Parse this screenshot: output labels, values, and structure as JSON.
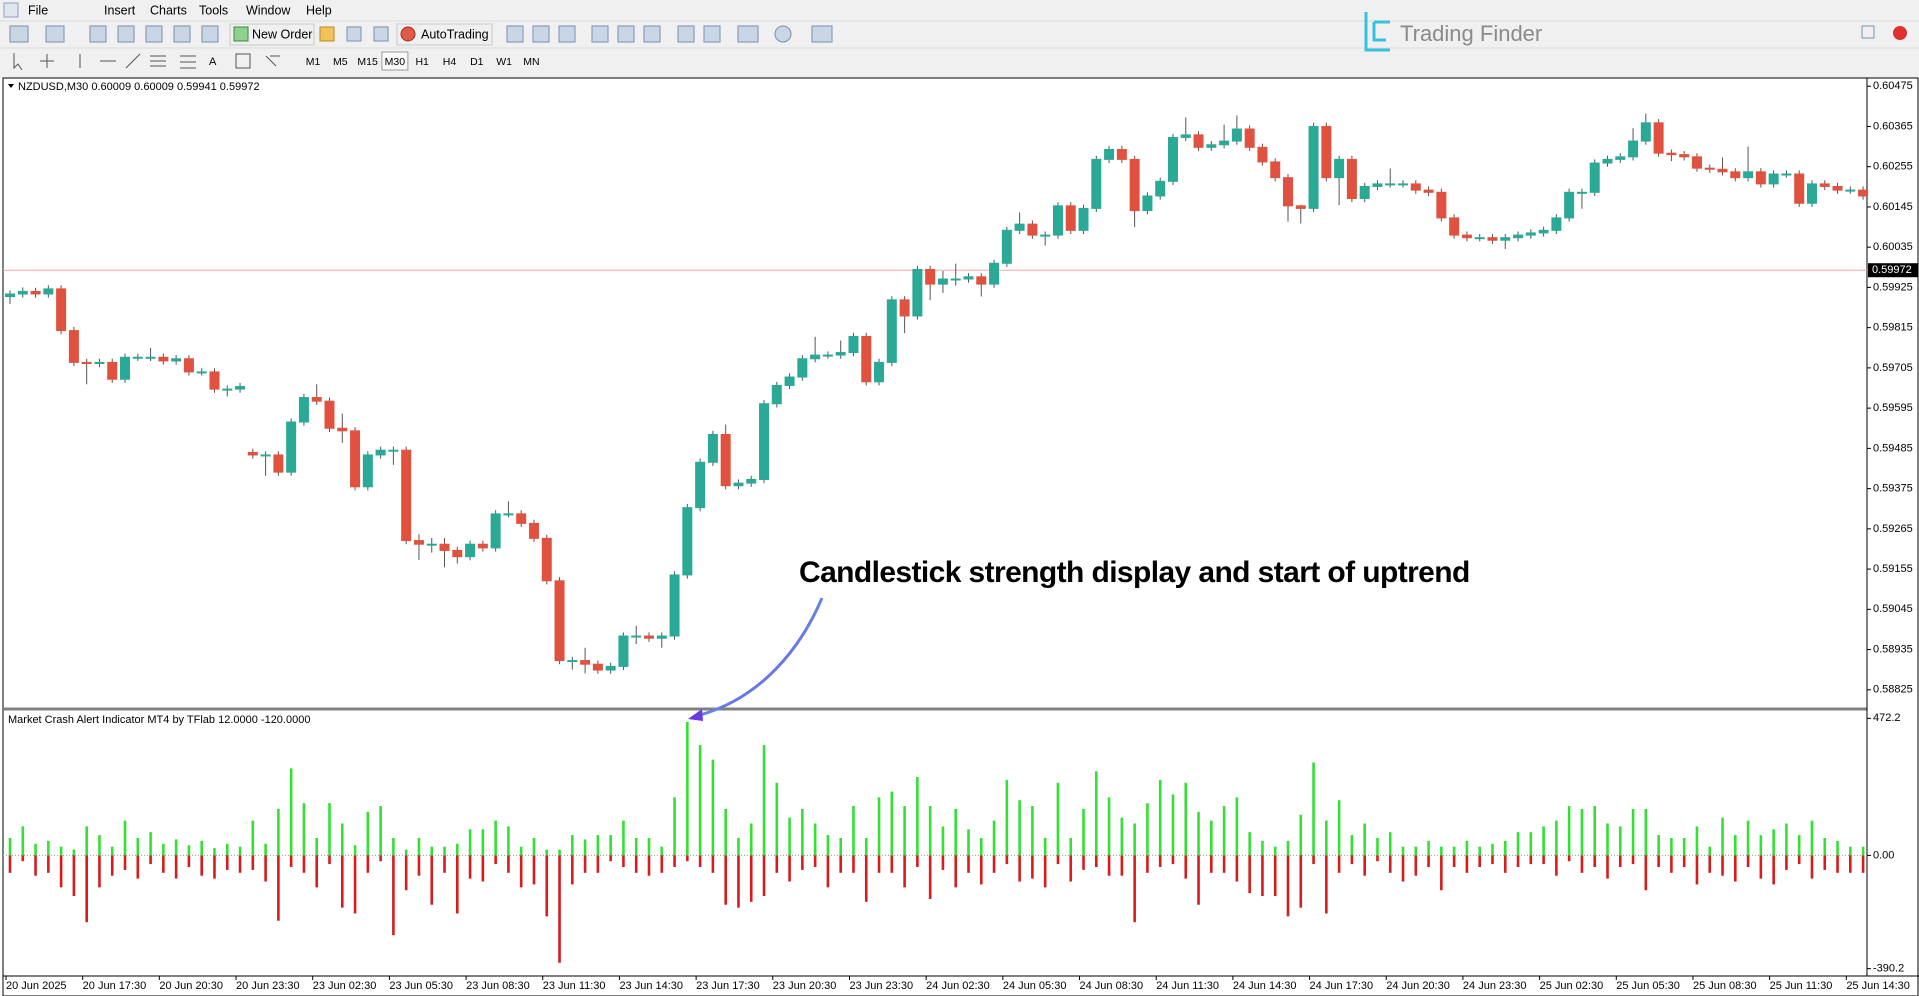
{
  "menu": [
    "File",
    "Insert",
    "Charts",
    "Tools",
    "Window",
    "Help"
  ],
  "toolbar": {
    "new_order": "New Order",
    "auto_trading": "AutoTrading",
    "timeframes": [
      "M1",
      "M5",
      "M15",
      "M30",
      "H1",
      "H4",
      "D1",
      "W1",
      "MN"
    ],
    "active_timeframe": "M30"
  },
  "brand": "Trading Finder",
  "annotation": "Candlestick strength display and start of uptrend",
  "chart_data": [
    {
      "type": "candlestick",
      "title": "NZDUSD,M30 0.60009 0.60009 0.59941 0.59972",
      "categories": [
        "20 Jun 2025",
        null,
        null,
        null,
        null,
        null,
        "20 Jun 17:30",
        null,
        null,
        null,
        null,
        null,
        "20 Jun 20:30",
        null,
        null,
        null,
        null,
        null,
        "20 Jun 23:30",
        null,
        null,
        null,
        null,
        null,
        "23 Jun 02:30",
        null,
        null,
        null,
        null,
        null,
        "23 Jun 05:30",
        null,
        null,
        null,
        null,
        null,
        "23 Jun 08:30",
        null,
        null,
        null,
        null,
        null,
        "23 Jun 11:30",
        null,
        null,
        null,
        null,
        null,
        "23 Jun 14:30",
        null,
        null,
        null,
        null,
        null,
        "23 Jun 17:30",
        null,
        null,
        null,
        null,
        null,
        "23 Jun 20:30",
        null,
        null,
        null,
        null,
        null,
        "23 Jun 23:30",
        null,
        null,
        null,
        null,
        null,
        "24 Jun 02:30",
        null,
        null,
        null,
        null,
        null,
        "24 Jun 05:30",
        null,
        null,
        null,
        null,
        null,
        "24 Jun 08:30",
        null,
        null,
        null,
        null,
        null,
        "24 Jun 11:30",
        null,
        null,
        null,
        null,
        null,
        "24 Jun 14:30",
        null,
        null,
        null,
        null,
        null,
        "24 Jun 17:30",
        null,
        null,
        null,
        null,
        null,
        "24 Jun 20:30",
        null,
        null,
        null,
        null,
        null,
        "24 Jun 23:30",
        null,
        null,
        null,
        null,
        null,
        "25 Jun 02:30",
        null,
        null,
        null,
        null,
        null,
        "25 Jun 05:30",
        null,
        null,
        null,
        null,
        null,
        "25 Jun 08:30",
        null,
        null,
        null,
        null,
        null,
        "25 Jun 11:30",
        null,
        null,
        null,
        null,
        null,
        "25 Jun 14:30",
        null
      ],
      "open": [
        0.599,
        0.59907,
        0.59914,
        0.59907,
        0.59921,
        0.59807,
        0.5972,
        0.59717,
        0.5972,
        0.59674,
        0.59734,
        0.59734,
        0.59734,
        0.59724,
        0.5973,
        0.59694,
        0.59694,
        0.59647,
        0.59647,
        0.59474,
        0.59467,
        0.59467,
        0.5942,
        0.59557,
        0.59624,
        0.59614,
        0.5954,
        0.59533,
        0.5938,
        0.59467,
        0.5948,
        0.5948,
        0.59233,
        0.59223,
        0.59223,
        0.59206,
        0.59189,
        0.59223,
        0.59213,
        0.59306,
        0.59306,
        0.5928,
        0.59239,
        0.59123,
        0.58905,
        0.58905,
        0.58895,
        0.58879,
        0.58889,
        0.58972,
        0.58972,
        0.58966,
        0.58972,
        0.59139,
        0.59323,
        0.59447,
        0.59523,
        0.59383,
        0.5939,
        0.594,
        0.59607,
        0.59657,
        0.5968,
        0.5973,
        0.5974,
        0.5974,
        0.59747,
        0.59791,
        0.59667,
        0.5972,
        0.59891,
        0.59847,
        0.59974,
        0.59934,
        0.59948,
        0.59948,
        0.59954,
        0.59934,
        0.59991,
        0.60081,
        0.60098,
        0.60068,
        0.60068,
        0.60148,
        0.60081,
        0.60141,
        0.60275,
        0.60302,
        0.60275,
        0.60135,
        0.60175,
        0.60215,
        0.60335,
        0.60342,
        0.60308,
        0.60315,
        0.60325,
        0.60358,
        0.60308,
        0.60268,
        0.60225,
        0.60148,
        0.60141,
        0.60365,
        0.60225,
        0.60275,
        0.60168,
        0.60201,
        0.60208,
        0.60208,
        0.60208,
        0.60191,
        0.60185,
        0.60115,
        0.60068,
        0.60061,
        0.60061,
        0.60054,
        0.60061,
        0.60068,
        0.60074,
        0.60081,
        0.60115,
        0.60185,
        0.60185,
        0.60265,
        0.60275,
        0.60282,
        0.60325,
        0.60375,
        0.60292,
        0.60288,
        0.60282,
        0.60251,
        0.60248,
        0.60241,
        0.60225,
        0.60241,
        0.60208,
        0.60235,
        0.60235,
        0.60155,
        0.60208,
        0.60201,
        0.60191,
        0.60191
      ],
      "high": [
        0.59917,
        0.59925,
        0.59924,
        0.59931,
        0.59931,
        0.59817,
        0.5973,
        0.5973,
        0.5973,
        0.59744,
        0.59744,
        0.5976,
        0.59744,
        0.5974,
        0.5974,
        0.59704,
        0.59704,
        0.59657,
        0.59664,
        0.59484,
        0.59477,
        0.59477,
        0.59567,
        0.59634,
        0.5966,
        0.59624,
        0.5958,
        0.59543,
        0.59477,
        0.5949,
        0.5949,
        0.5949,
        0.5925,
        0.5924,
        0.5924,
        0.59216,
        0.59233,
        0.59233,
        0.59316,
        0.5934,
        0.59316,
        0.5929,
        0.59249,
        0.59133,
        0.58915,
        0.5894,
        0.58905,
        0.58899,
        0.58982,
        0.59,
        0.58982,
        0.58982,
        0.59149,
        0.59333,
        0.59457,
        0.59533,
        0.5955,
        0.594,
        0.5941,
        0.59617,
        0.59667,
        0.5969,
        0.5974,
        0.5979,
        0.5975,
        0.5978,
        0.59801,
        0.59801,
        0.5973,
        0.59901,
        0.59901,
        0.59984,
        0.59984,
        0.5997,
        0.5999,
        0.59964,
        0.59964,
        0.60001,
        0.60091,
        0.6013,
        0.60108,
        0.60078,
        0.60158,
        0.60158,
        0.60151,
        0.60285,
        0.60312,
        0.60312,
        0.60285,
        0.60185,
        0.60225,
        0.60345,
        0.6039,
        0.60352,
        0.60325,
        0.6037,
        0.60395,
        0.60368,
        0.60318,
        0.60278,
        0.60235,
        0.60151,
        0.60375,
        0.60375,
        0.60285,
        0.60285,
        0.60211,
        0.60218,
        0.6025,
        0.60218,
        0.60218,
        0.60201,
        0.60195,
        0.60125,
        0.60078,
        0.60071,
        0.60071,
        0.60071,
        0.60078,
        0.60084,
        0.60091,
        0.60125,
        0.60195,
        0.60195,
        0.60275,
        0.60285,
        0.60292,
        0.6036,
        0.604,
        0.60385,
        0.60302,
        0.60298,
        0.60292,
        0.60261,
        0.6028,
        0.60251,
        0.6031,
        0.60251,
        0.60245,
        0.60245,
        0.60245,
        0.60218,
        0.60218,
        0.60211,
        0.60201,
        0.60201
      ],
      "low": [
        0.5988,
        0.59897,
        0.59897,
        0.59897,
        0.59797,
        0.5971,
        0.5966,
        0.59707,
        0.59664,
        0.59664,
        0.59724,
        0.59724,
        0.59714,
        0.59714,
        0.59684,
        0.59684,
        0.59637,
        0.59627,
        0.59637,
        0.59457,
        0.5941,
        0.5941,
        0.5941,
        0.59547,
        0.59604,
        0.5953,
        0.595,
        0.5937,
        0.5937,
        0.59457,
        0.5944,
        0.59223,
        0.5918,
        0.592,
        0.5916,
        0.5917,
        0.59179,
        0.59203,
        0.59203,
        0.59296,
        0.5927,
        0.59229,
        0.59113,
        0.58895,
        0.5888,
        0.5887,
        0.58869,
        0.58869,
        0.58879,
        0.5895,
        0.58956,
        0.5894,
        0.58962,
        0.59129,
        0.59313,
        0.59437,
        0.59373,
        0.59373,
        0.5938,
        0.5939,
        0.59597,
        0.59647,
        0.5967,
        0.5972,
        0.5973,
        0.5973,
        0.59737,
        0.59657,
        0.59657,
        0.5971,
        0.598,
        0.59837,
        0.5989,
        0.5991,
        0.5993,
        0.59938,
        0.599,
        0.59924,
        0.59981,
        0.60071,
        0.60058,
        0.6004,
        0.60058,
        0.60071,
        0.60071,
        0.60131,
        0.60265,
        0.60265,
        0.6009,
        0.60125,
        0.60165,
        0.60205,
        0.60325,
        0.60298,
        0.60298,
        0.60305,
        0.60315,
        0.60298,
        0.60258,
        0.60215,
        0.60105,
        0.601,
        0.60131,
        0.60215,
        0.6015,
        0.60158,
        0.60158,
        0.60191,
        0.60198,
        0.60198,
        0.60181,
        0.60175,
        0.60105,
        0.60058,
        0.60051,
        0.60051,
        0.60044,
        0.6003,
        0.60051,
        0.60058,
        0.60064,
        0.60071,
        0.60105,
        0.6014,
        0.60175,
        0.60255,
        0.60265,
        0.60272,
        0.60315,
        0.60282,
        0.6027,
        0.60272,
        0.60241,
        0.60238,
        0.60231,
        0.60215,
        0.60215,
        0.60198,
        0.60198,
        0.60225,
        0.60145,
        0.60145,
        0.60191,
        0.60181,
        0.60181,
        0.60165
      ],
      "close": [
        0.59907,
        0.59914,
        0.59907,
        0.59921,
        0.59807,
        0.5972,
        0.59717,
        0.5972,
        0.59674,
        0.59734,
        0.59734,
        0.59734,
        0.59724,
        0.5973,
        0.59694,
        0.59694,
        0.59647,
        0.59647,
        0.59654,
        0.59467,
        0.59467,
        0.5942,
        0.59557,
        0.59624,
        0.59614,
        0.5954,
        0.59533,
        0.5938,
        0.59467,
        0.5948,
        0.5948,
        0.59233,
        0.59223,
        0.59223,
        0.59206,
        0.59189,
        0.59223,
        0.59213,
        0.59306,
        0.59306,
        0.5928,
        0.59239,
        0.59123,
        0.58905,
        0.58905,
        0.58895,
        0.58879,
        0.58889,
        0.58972,
        0.58972,
        0.58966,
        0.58972,
        0.59139,
        0.59323,
        0.59447,
        0.59523,
        0.59383,
        0.5939,
        0.594,
        0.59607,
        0.59657,
        0.5968,
        0.5973,
        0.5974,
        0.5974,
        0.59747,
        0.59791,
        0.59667,
        0.5972,
        0.59891,
        0.59847,
        0.59974,
        0.59934,
        0.59948,
        0.59948,
        0.59954,
        0.59934,
        0.59991,
        0.60081,
        0.60098,
        0.60068,
        0.60068,
        0.60148,
        0.60081,
        0.60141,
        0.60275,
        0.60302,
        0.60275,
        0.60135,
        0.60175,
        0.60215,
        0.60335,
        0.60342,
        0.60308,
        0.60315,
        0.60325,
        0.60358,
        0.60308,
        0.60268,
        0.60225,
        0.60148,
        0.60141,
        0.60365,
        0.60225,
        0.60275,
        0.60168,
        0.60201,
        0.60208,
        0.60208,
        0.60208,
        0.60191,
        0.60185,
        0.60115,
        0.60068,
        0.60061,
        0.60061,
        0.60054,
        0.60061,
        0.60068,
        0.60074,
        0.60081,
        0.60115,
        0.60185,
        0.60185,
        0.60265,
        0.60275,
        0.60282,
        0.60325,
        0.60375,
        0.60292,
        0.60288,
        0.60282,
        0.60251,
        0.60248,
        0.60241,
        0.60225,
        0.60241,
        0.60208,
        0.60235,
        0.60235,
        0.60155,
        0.60208,
        0.60201,
        0.60191,
        0.60191,
        0.60175
      ],
      "up_color": "#2aa997",
      "down_color": "#e0523f",
      "ylim": [
        0.58778,
        0.60492
      ],
      "yticks": [
        0.60475,
        0.60365,
        0.60255,
        0.60145,
        0.60035,
        0.59925,
        0.59815,
        0.59705,
        0.59595,
        0.59485,
        0.59375,
        0.59265,
        0.59155,
        0.59045,
        0.58935,
        0.58825
      ],
      "current_price": 0.59972,
      "price_line_color": "#f2a9a3",
      "grid": false
    },
    {
      "type": "bar",
      "title": "Market Crash Alert Indicator MT4 by TFlab 12.0000 -120.0000",
      "series": [
        {
          "color": "#33e133",
          "values": [
            60,
            100,
            40,
            50,
            30,
            20,
            100,
            70,
            30,
            120,
            60,
            80,
            40,
            55,
            35,
            50,
            25,
            40,
            30,
            120,
            40,
            160,
            300,
            180,
            60,
            180,
            110,
            35,
            150,
            170,
            60,
            20,
            60,
            30,
            30,
            40,
            90,
            90,
            120,
            100,
            30,
            60,
            20,
            20,
            70,
            55,
            70,
            70,
            120,
            60,
            60,
            30,
            200,
            460,
            380,
            330,
            160,
            60,
            110,
            380,
            250,
            130,
            160,
            110,
            70,
            60,
            170,
            60,
            200,
            220,
            170,
            270,
            170,
            100,
            160,
            90,
            60,
            120,
            260,
            190,
            170,
            60,
            250,
            60,
            160,
            290,
            200,
            130,
            110,
            180,
            260,
            210,
            250,
            150,
            120,
            170,
            200,
            80,
            50,
            30,
            50,
            140,
            320,
            120,
            190,
            70,
            110,
            60,
            80,
            30,
            30,
            50,
            30,
            30,
            50,
            30,
            40,
            50,
            80,
            80,
            100,
            120,
            170,
            160,
            170,
            110,
            100,
            160,
            160,
            70,
            60,
            60,
            100,
            30,
            130,
            70,
            120,
            70,
            90,
            110,
            70,
            120,
            60,
            50,
            30,
            30
          ]
        },
        {
          "color": "#d61c1c",
          "values": [
            -60,
            -20,
            -70,
            -60,
            -110,
            -140,
            -230,
            -110,
            -70,
            -50,
            -80,
            -30,
            -60,
            -80,
            -40,
            -70,
            -80,
            -50,
            -60,
            -50,
            -90,
            -225,
            -40,
            -60,
            -110,
            -30,
            -180,
            -200,
            -60,
            -20,
            -275,
            -120,
            -70,
            -170,
            -60,
            -200,
            -80,
            -90,
            -30,
            -60,
            -110,
            -100,
            -210,
            -370,
            -100,
            -60,
            -60,
            -20,
            -40,
            -60,
            -70,
            -60,
            -40,
            -20,
            -40,
            -60,
            -170,
            -180,
            -160,
            -140,
            -60,
            -90,
            -50,
            -40,
            -110,
            -60,
            -60,
            -160,
            -60,
            -60,
            -110,
            -40,
            -150,
            -50,
            -110,
            -60,
            -100,
            -60,
            -30,
            -90,
            -80,
            -110,
            -30,
            -90,
            -50,
            -40,
            -70,
            -70,
            -230,
            -60,
            -40,
            -30,
            -80,
            -170,
            -60,
            -60,
            -90,
            -130,
            -140,
            -140,
            -210,
            -180,
            -30,
            -200,
            -60,
            -30,
            -70,
            -20,
            -60,
            -90,
            -70,
            -40,
            -120,
            -40,
            -60,
            -40,
            -30,
            -60,
            -40,
            -30,
            -30,
            -70,
            -20,
            -60,
            -40,
            -80,
            -40,
            -30,
            -120,
            -40,
            -60,
            -40,
            -100,
            -60,
            -70,
            -90,
            -40,
            -80,
            -100,
            -50,
            -30,
            -80,
            -50,
            -60,
            -60,
            -60
          ]
        }
      ],
      "ylim": [
        -415.5,
        497.5
      ],
      "yticks": [
        472.2,
        {
          "value": 0,
          "label": "0.00"
        },
        -390.2
      ]
    }
  ]
}
